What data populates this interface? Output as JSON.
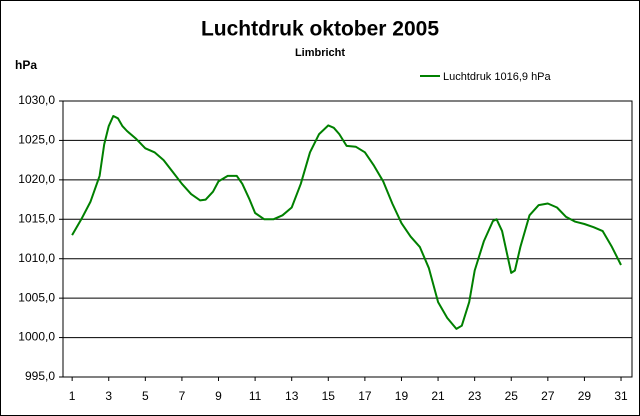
{
  "chart_data": {
    "type": "line",
    "title": "Luchtdruk oktober 2005",
    "subtitle": "Limbricht",
    "y_label": "hPa",
    "x": [
      1,
      1.5,
      2,
      2.5,
      2.75,
      3,
      3.25,
      3.5,
      3.75,
      4,
      4.5,
      5,
      5.5,
      6,
      6.5,
      7,
      7.5,
      8,
      8.3,
      8.7,
      9,
      9.5,
      10,
      10.3,
      10.7,
      11,
      11.5,
      12,
      12.5,
      13,
      13.5,
      14,
      14.5,
      15,
      15.3,
      15.6,
      16,
      16.5,
      17,
      17.5,
      18,
      18.5,
      19,
      19.5,
      20,
      20.5,
      21,
      21.5,
      22,
      22.3,
      22.7,
      23,
      23.5,
      24,
      24.2,
      24.5,
      25,
      25.2,
      25.5,
      26,
      26.5,
      27,
      27.5,
      28,
      28.5,
      29,
      29.5,
      30,
      30.5,
      31
    ],
    "series": [
      {
        "name": "Luchtdruk 1016,9 hPa",
        "color": "#008000",
        "values": [
          1013.0,
          1015.0,
          1017.2,
          1020.5,
          1024.5,
          1026.8,
          1028.1,
          1027.8,
          1026.8,
          1026.2,
          1025.2,
          1024.0,
          1023.5,
          1022.5,
          1021.0,
          1019.5,
          1018.2,
          1017.4,
          1017.5,
          1018.5,
          1019.8,
          1020.5,
          1020.5,
          1019.5,
          1017.5,
          1015.8,
          1015.0,
          1015.0,
          1015.5,
          1016.5,
          1019.5,
          1023.5,
          1025.8,
          1026.9,
          1026.6,
          1025.8,
          1024.3,
          1024.2,
          1023.5,
          1021.8,
          1019.8,
          1017.0,
          1014.5,
          1012.8,
          1011.5,
          1008.8,
          1004.5,
          1002.5,
          1001.1,
          1001.5,
          1004.5,
          1008.5,
          1012.2,
          1014.8,
          1015.0,
          1013.5,
          1008.2,
          1008.5,
          1011.5,
          1015.5,
          1016.8,
          1017.0,
          1016.5,
          1015.3,
          1014.7,
          1014.4,
          1014.0,
          1013.5,
          1011.5,
          1009.2
        ]
      }
    ],
    "xlim": [
      0.5,
      31.6
    ],
    "xticks": [
      1,
      3,
      5,
      7,
      9,
      11,
      13,
      15,
      17,
      19,
      21,
      23,
      25,
      27,
      29,
      31
    ],
    "ylim": [
      995,
      1030
    ],
    "yticks": [
      {
        "value": 995,
        "label": "995,0"
      },
      {
        "value": 1000,
        "label": "1000,0"
      },
      {
        "value": 1005,
        "label": "1005,0"
      },
      {
        "value": 1010,
        "label": "1010,0"
      },
      {
        "value": 1015,
        "label": "1015,0"
      },
      {
        "value": 1020,
        "label": "1020,0"
      },
      {
        "value": 1025,
        "label": "1025,0"
      },
      {
        "value": 1030,
        "label": "1030,0"
      }
    ],
    "grid": true
  }
}
